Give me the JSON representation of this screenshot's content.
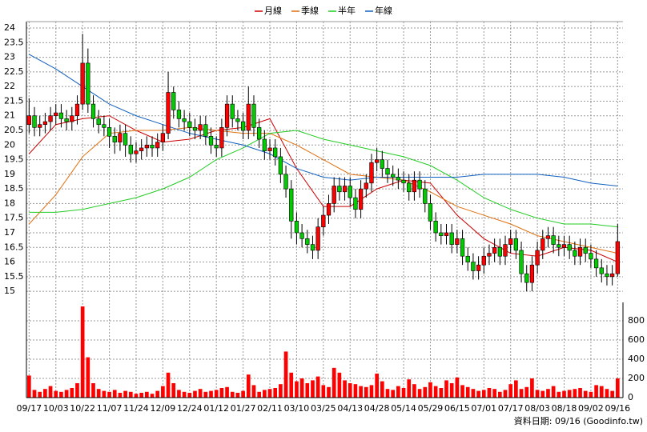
{
  "chart_data": {
    "type": "candlestick",
    "xlim": [
      -0.5,
      111
    ],
    "xticks": [
      {
        "value": 0,
        "label": "09/17"
      },
      {
        "value": 5,
        "label": "10/03"
      },
      {
        "value": 10,
        "label": "10/22"
      },
      {
        "value": 15,
        "label": "11/07"
      },
      {
        "value": 20,
        "label": "11/24"
      },
      {
        "value": 25,
        "label": "12/09"
      },
      {
        "value": 30,
        "label": "12/24"
      },
      {
        "value": 35,
        "label": "01/12"
      },
      {
        "value": 40,
        "label": "01/27"
      },
      {
        "value": 45,
        "label": "02/11"
      },
      {
        "value": 50,
        "label": "03/10"
      },
      {
        "value": 55,
        "label": "03/25"
      },
      {
        "value": 60,
        "label": "04/13"
      },
      {
        "value": 65,
        "label": "04/28"
      },
      {
        "value": 70,
        "label": "05/14"
      },
      {
        "value": 75,
        "label": "05/29"
      },
      {
        "value": 80,
        "label": "06/15"
      },
      {
        "value": 85,
        "label": "07/01"
      },
      {
        "value": 90,
        "label": "07/17"
      },
      {
        "value": 95,
        "label": "08/03"
      },
      {
        "value": 100,
        "label": "08/18"
      },
      {
        "value": 105,
        "label": "09/02"
      },
      {
        "value": 110,
        "label": "09/16"
      }
    ],
    "ylim": [
      14.62,
      24.22
    ],
    "yticks": [
      15,
      15.5,
      16,
      16.5,
      17,
      17.5,
      18,
      18.5,
      19,
      19.5,
      20,
      20.5,
      21,
      21.5,
      22,
      22.5,
      23,
      23.5,
      24
    ],
    "y2lim": [
      0,
      992
    ],
    "y2ticks": [
      0,
      200,
      400,
      600,
      800
    ],
    "grid": true,
    "up_color": "#ff0000",
    "down_color": "#00cc00",
    "volume_color": "#ff0000",
    "open": [
      20.7,
      21.0,
      20.6,
      20.7,
      20.8,
      21.0,
      21.1,
      20.9,
      20.8,
      21.0,
      21.4,
      22.8,
      21.4,
      20.9,
      20.7,
      20.6,
      20.3,
      20.1,
      20.4,
      20.0,
      19.7,
      19.8,
      19.9,
      20.0,
      19.9,
      20.1,
      20.4,
      21.8,
      21.2,
      20.9,
      20.8,
      20.6,
      20.5,
      20.7,
      20.3,
      20.0,
      19.9,
      20.6,
      21.4,
      20.9,
      20.8,
      20.5,
      21.4,
      20.6,
      20.2,
      19.8,
      19.9,
      19.6,
      19.0,
      18.5,
      17.4,
      17.0,
      16.8,
      16.6,
      16.4,
      17.2,
      17.6,
      18.0,
      18.6,
      18.4,
      18.6,
      18.2,
      17.8,
      18.5,
      18.7,
      19.4,
      19.5,
      19.2,
      19.0,
      18.9,
      18.8,
      18.7,
      18.4,
      18.8,
      18.5,
      18.0,
      17.4,
      17.0,
      16.9,
      17.0,
      16.6,
      16.8,
      16.2,
      16.0,
      15.7,
      15.9,
      16.2,
      16.3,
      16.5,
      16.2,
      16.6,
      16.8,
      16.4,
      15.6,
      15.3,
      15.9,
      16.4,
      16.8,
      16.9,
      16.6,
      16.5,
      16.6,
      16.4,
      16.2,
      16.5,
      16.3,
      16.1,
      15.8,
      15.6,
      15.5,
      15.6
    ],
    "high": [
      21.6,
      21.3,
      21.0,
      21.1,
      21.3,
      21.4,
      21.4,
      21.2,
      21.3,
      21.7,
      23.8,
      23.3,
      21.7,
      21.2,
      21.0,
      20.9,
      20.6,
      20.7,
      20.7,
      20.3,
      20.1,
      20.2,
      20.3,
      20.3,
      20.4,
      20.7,
      22.5,
      22.0,
      21.5,
      21.2,
      21.1,
      20.9,
      21.0,
      21.0,
      20.6,
      20.3,
      20.9,
      21.7,
      21.7,
      21.2,
      21.1,
      22.0,
      21.7,
      20.9,
      20.5,
      20.2,
      20.2,
      19.9,
      19.3,
      18.8,
      17.7,
      17.3,
      17.1,
      16.9,
      17.5,
      17.9,
      18.3,
      18.9,
      18.9,
      18.9,
      18.9,
      18.5,
      18.8,
      19.0,
      19.7,
      19.9,
      19.8,
      19.5,
      19.3,
      19.2,
      19.1,
      19.0,
      19.1,
      19.1,
      18.8,
      18.3,
      17.7,
      17.3,
      17.3,
      17.3,
      17.1,
      17.1,
      16.5,
      16.3,
      16.2,
      16.5,
      16.6,
      16.8,
      16.8,
      16.9,
      17.1,
      17.1,
      16.7,
      15.9,
      16.2,
      16.7,
      17.1,
      17.2,
      17.2,
      16.9,
      16.9,
      16.9,
      16.7,
      16.8,
      16.8,
      16.6,
      16.4,
      16.1,
      15.9,
      15.9,
      17.3
    ],
    "low": [
      20.4,
      20.3,
      20.3,
      20.4,
      20.5,
      20.7,
      20.6,
      20.5,
      20.5,
      20.7,
      21.2,
      21.1,
      20.6,
      20.4,
      20.3,
      19.9,
      19.7,
      19.8,
      19.6,
      19.4,
      19.4,
      19.5,
      19.6,
      19.6,
      19.6,
      19.8,
      20.2,
      20.9,
      20.6,
      20.5,
      20.3,
      20.2,
      20.2,
      20.0,
      19.7,
      19.6,
      19.6,
      20.3,
      20.6,
      20.5,
      20.2,
      20.2,
      20.3,
      19.9,
      19.5,
      19.5,
      19.3,
      18.7,
      18.2,
      16.8,
      16.6,
      16.5,
      16.3,
      16.1,
      16.1,
      16.9,
      17.3,
      17.7,
      18.1,
      18.1,
      17.9,
      17.5,
      17.5,
      18.2,
      18.4,
      19.1,
      18.9,
      18.7,
      18.6,
      18.5,
      18.4,
      18.1,
      18.1,
      18.2,
      17.7,
      17.1,
      16.7,
      16.6,
      16.6,
      16.3,
      16.3,
      15.9,
      15.7,
      15.4,
      15.4,
      15.6,
      15.9,
      16.0,
      15.9,
      15.9,
      16.3,
      16.1,
      15.3,
      15.0,
      15.0,
      15.6,
      16.1,
      16.5,
      16.3,
      16.2,
      16.2,
      16.1,
      15.9,
      15.9,
      16.0,
      15.8,
      15.5,
      15.3,
      15.2,
      15.2,
      15.5
    ],
    "close": [
      21.0,
      20.6,
      20.7,
      20.8,
      21.0,
      21.1,
      20.9,
      20.8,
      21.0,
      21.4,
      22.8,
      21.4,
      20.9,
      20.7,
      20.6,
      20.3,
      20.1,
      20.4,
      20.0,
      19.7,
      19.8,
      19.9,
      20.0,
      19.9,
      20.1,
      20.4,
      21.8,
      21.2,
      20.9,
      20.8,
      20.6,
      20.5,
      20.7,
      20.3,
      20.0,
      19.9,
      20.6,
      21.4,
      20.9,
      20.8,
      20.5,
      21.4,
      20.6,
      20.2,
      19.8,
      19.9,
      19.6,
      19.0,
      18.5,
      17.4,
      17.0,
      16.8,
      16.6,
      16.4,
      17.2,
      17.6,
      18.0,
      18.6,
      18.4,
      18.6,
      18.2,
      17.8,
      18.5,
      18.7,
      19.4,
      19.5,
      19.2,
      19.0,
      18.9,
      18.8,
      18.7,
      18.4,
      18.8,
      18.5,
      18.0,
      17.4,
      17.0,
      16.9,
      17.0,
      16.6,
      16.8,
      16.2,
      16.0,
      15.7,
      15.9,
      16.2,
      16.3,
      16.5,
      16.2,
      16.6,
      16.8,
      16.4,
      15.6,
      15.3,
      15.9,
      16.4,
      16.8,
      16.9,
      16.6,
      16.5,
      16.6,
      16.4,
      16.2,
      16.5,
      16.3,
      16.1,
      15.8,
      15.6,
      15.5,
      15.6,
      16.7
    ],
    "volume": [
      230,
      80,
      60,
      90,
      120,
      70,
      60,
      80,
      100,
      150,
      950,
      420,
      150,
      90,
      70,
      60,
      80,
      50,
      70,
      60,
      40,
      50,
      60,
      40,
      70,
      120,
      260,
      150,
      80,
      60,
      50,
      70,
      90,
      60,
      70,
      80,
      100,
      110,
      60,
      50,
      70,
      240,
      130,
      60,
      80,
      90,
      100,
      140,
      480,
      260,
      170,
      200,
      150,
      180,
      220,
      130,
      110,
      310,
      260,
      180,
      150,
      140,
      120,
      110,
      130,
      250,
      170,
      90,
      80,
      120,
      100,
      190,
      140,
      90,
      110,
      160,
      120,
      100,
      180,
      150,
      210,
      130,
      110,
      90,
      70,
      80,
      100,
      90,
      60,
      80,
      140,
      180,
      90,
      110,
      200,
      80,
      70,
      90,
      120,
      60,
      70,
      80,
      90,
      100,
      70,
      60,
      130,
      120,
      90,
      70,
      200
    ],
    "ma_x": [
      0,
      5,
      10,
      15,
      20,
      25,
      30,
      35,
      40,
      45,
      50,
      55,
      60,
      65,
      70,
      75,
      80,
      85,
      90,
      95,
      100,
      105,
      110
    ],
    "series": [
      {
        "name": "月線",
        "color": "#cc0000",
        "values": [
          19.7,
          20.7,
          20.9,
          21.0,
          20.5,
          20.1,
          20.2,
          20.5,
          20.6,
          20.9,
          19.2,
          17.9,
          17.9,
          18.5,
          18.8,
          18.7,
          17.6,
          16.8,
          16.3,
          16.2,
          16.5,
          16.4,
          16.0
        ]
      },
      {
        "name": "季線",
        "color": "#e07010",
        "values": [
          17.3,
          18.3,
          19.6,
          20.4,
          20.5,
          20.5,
          20.6,
          20.5,
          20.4,
          20.4,
          20.0,
          19.5,
          19.0,
          18.9,
          18.8,
          18.4,
          17.9,
          17.6,
          17.3,
          16.9,
          16.7,
          16.5,
          16.3
        ]
      },
      {
        "name": "半年",
        "color": "#22cc22",
        "values": [
          17.7,
          17.7,
          17.8,
          18.0,
          18.2,
          18.5,
          18.9,
          19.5,
          19.9,
          20.4,
          20.5,
          20.2,
          20.0,
          19.8,
          19.6,
          19.3,
          18.8,
          18.2,
          17.8,
          17.5,
          17.3,
          17.3,
          17.2
        ]
      },
      {
        "name": "年線",
        "color": "#1060c0",
        "values": [
          23.1,
          22.6,
          22.0,
          21.4,
          21.0,
          20.7,
          20.4,
          20.2,
          20.0,
          19.7,
          19.2,
          18.9,
          18.8,
          18.9,
          18.9,
          18.9,
          18.9,
          19.0,
          19.0,
          19.0,
          18.9,
          18.7,
          18.6
        ]
      }
    ],
    "source_note": "資料日期: 09/16 (Goodinfo.tw)"
  }
}
